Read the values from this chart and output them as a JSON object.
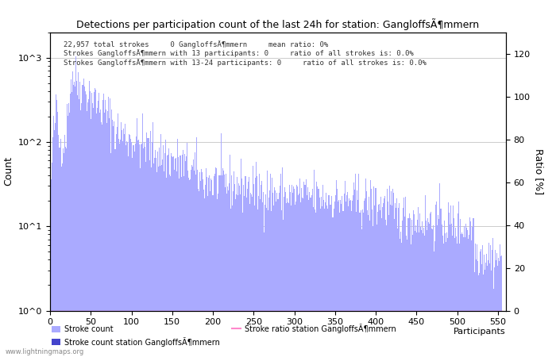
{
  "title": "Detections per participation count of the last 24h for station: GangloffsÃ¶mmern",
  "annotation_line1": "22,957 total strokes     0 GangloffsÃ¶mmern     mean ratio: 0%",
  "annotation_line2": "Strokes GangloffsÃ¶mmern with 13 participants: 0     ratio of all strokes is: 0.0%",
  "annotation_line3": "Strokes GangloffsÃ¶mmern with 13-24 participants: 0     ratio of all strokes is: 0.0%",
  "xlabel": "Participants",
  "ylabel_left": "Count",
  "ylabel_right": "Ratio [%]",
  "xlim": [
    0,
    560
  ],
  "ylim_left": [
    1,
    2000
  ],
  "ylim_right": [
    0,
    130
  ],
  "yticks_right": [
    0,
    20,
    40,
    60,
    80,
    100,
    120
  ],
  "bar_color_fill": "#aaaaff",
  "bar_color_station": "#4444cc",
  "ratio_line_color": "#ff88cc",
  "grid_color": "#cccccc",
  "background_color": "#ffffff",
  "watermark": "www.lightningmaps.org",
  "legend_labels": [
    "Stroke count",
    "Stroke count station GangloffsÃ¶mmern",
    "Stroke ratio station GangloffsÃ¶mmern"
  ],
  "xticks": [
    0,
    50,
    100,
    150,
    200,
    250,
    300,
    350,
    400,
    450,
    500,
    550
  ]
}
